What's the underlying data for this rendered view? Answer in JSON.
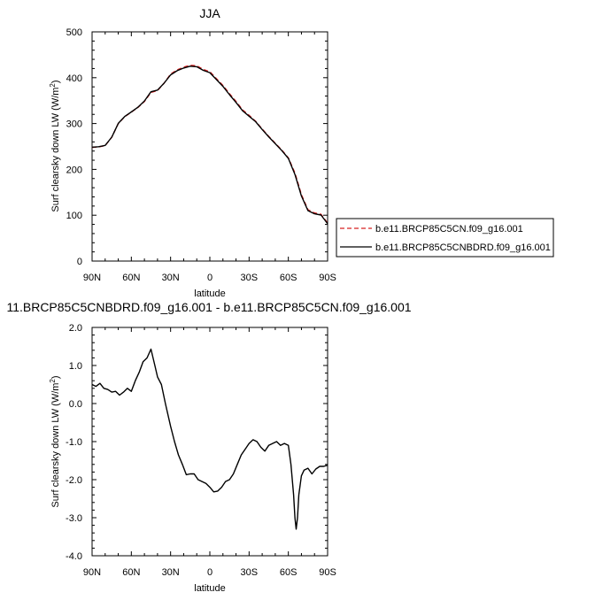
{
  "chart_data": [
    {
      "type": "line",
      "title": "JJA",
      "xlabel": "latitude",
      "ylabel": "Surf clearsky down LW (W/m",
      "ylabel_sup": "2",
      "ylabel_end": ")",
      "xlim": [
        90,
        -90
      ],
      "ylim": [
        0,
        500
      ],
      "xticks": [
        90,
        60,
        30,
        0,
        -30,
        -60,
        -90
      ],
      "xtick_labels": [
        "90N",
        "60N",
        "30N",
        "0",
        "30S",
        "60S",
        "90S"
      ],
      "yticks": [
        0,
        100,
        200,
        300,
        400,
        500
      ],
      "ytick_labels": [
        "0",
        "100",
        "200",
        "300",
        "400",
        "500"
      ],
      "legend_placement": "right",
      "series": [
        {
          "name": "b.e11.BRCP85C5CN.f09_g16.001",
          "color": "#d62020",
          "dash": "dashed",
          "x": [
            90,
            85,
            80,
            75,
            70,
            65,
            60,
            55,
            50,
            45,
            40,
            35,
            30,
            25,
            20,
            15,
            10,
            5,
            0,
            -5,
            -10,
            -15,
            -20,
            -25,
            -30,
            -35,
            -40,
            -45,
            -50,
            -55,
            -60,
            -65,
            -70,
            -75,
            -80,
            -85,
            -90
          ],
          "y": [
            248,
            249,
            252,
            270,
            300,
            315,
            325,
            335,
            348,
            368,
            372,
            388,
            408,
            417,
            423,
            427,
            426,
            418,
            413,
            398,
            383,
            365,
            348,
            330,
            318,
            305,
            288,
            272,
            257,
            242,
            225,
            192,
            145,
            112,
            105,
            102,
            83
          ]
        },
        {
          "name": "b.e11.BRCP85C5CNBDRD.f09_g16.001",
          "color": "#000000",
          "dash": "solid",
          "x": [
            90,
            85,
            80,
            75,
            70,
            65,
            60,
            55,
            50,
            45,
            40,
            35,
            30,
            25,
            20,
            15,
            10,
            5,
            0,
            -5,
            -10,
            -15,
            -20,
            -25,
            -30,
            -35,
            -40,
            -45,
            -50,
            -55,
            -60,
            -65,
            -70,
            -75,
            -80,
            -85,
            -90
          ],
          "y": [
            248.5,
            249.5,
            252.3,
            270.2,
            300.3,
            315.4,
            325.3,
            335.5,
            349.2,
            369.4,
            372.9,
            388,
            406.2,
            415.2,
            421,
            425,
            424,
            416,
            411,
            396,
            381,
            363,
            346,
            328,
            316,
            304,
            287,
            271,
            256,
            241,
            224,
            189,
            142,
            110,
            103,
            100.3,
            81.4
          ]
        }
      ]
    },
    {
      "type": "line",
      "title": "11.BRCP85C5CNBDRD.f09_g16.001 - b.e11.BRCP85C5CN.f09_g16.001",
      "xlabel": "latitude",
      "ylabel": "Surf clearsky down LW (W/m",
      "ylabel_sup": "2",
      "ylabel_end": ")",
      "xlim": [
        90,
        -90
      ],
      "ylim": [
        -4.0,
        2.0
      ],
      "xticks": [
        90,
        60,
        30,
        0,
        -30,
        -60,
        -90
      ],
      "xtick_labels": [
        "90N",
        "60N",
        "30N",
        "0",
        "30S",
        "60S",
        "90S"
      ],
      "yticks": [
        -4.0,
        -3.0,
        -2.0,
        -1.0,
        0.0,
        1.0,
        2.0
      ],
      "ytick_labels": [
        "-4.0",
        "-3.0",
        "-2.0",
        "-1.0",
        "0.0",
        "1.0",
        "2.0"
      ],
      "series": [
        {
          "color": "#000000",
          "dash": "solid",
          "x": [
            90,
            87,
            84,
            81,
            78,
            75,
            72,
            69,
            66,
            63,
            60,
            57,
            54,
            51,
            48,
            45,
            42,
            40,
            37,
            34,
            30,
            27,
            24,
            21,
            18,
            15,
            12,
            9,
            6,
            3,
            0,
            -3,
            -6,
            -9,
            -12,
            -15,
            -18,
            -21,
            -24,
            -27,
            -30,
            -33,
            -36,
            -39,
            -42,
            -45,
            -48,
            -51,
            -54,
            -57,
            -60,
            -62,
            -64,
            -65,
            -66,
            -67,
            -68,
            -70,
            -72,
            -75,
            -78,
            -81,
            -84,
            -87,
            -90
          ],
          "y": [
            0.5,
            0.45,
            0.53,
            0.4,
            0.37,
            0.3,
            0.32,
            0.22,
            0.3,
            0.4,
            0.32,
            0.6,
            0.82,
            1.1,
            1.2,
            1.43,
            1.0,
            0.7,
            0.5,
            0.0,
            -0.6,
            -1.0,
            -1.35,
            -1.6,
            -1.87,
            -1.85,
            -1.85,
            -2.0,
            -2.05,
            -2.1,
            -2.2,
            -2.32,
            -2.3,
            -2.2,
            -2.05,
            -2.0,
            -1.85,
            -1.6,
            -1.35,
            -1.2,
            -1.05,
            -0.95,
            -1.0,
            -1.15,
            -1.25,
            -1.1,
            -1.05,
            -1.0,
            -1.1,
            -1.05,
            -1.1,
            -1.6,
            -2.4,
            -3.0,
            -3.3,
            -3.0,
            -2.4,
            -1.9,
            -1.75,
            -1.7,
            -1.85,
            -1.72,
            -1.65,
            -1.65,
            -1.62
          ]
        }
      ]
    }
  ]
}
